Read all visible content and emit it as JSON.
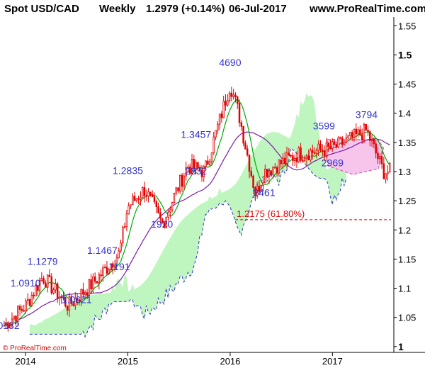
{
  "header": {
    "symbol": "Spot USD/CAD",
    "timeframe": "Weekly",
    "last": "1.2979 (+0.14%)",
    "date": "06-Jul-2017",
    "site": "www.ProRealTime.com"
  },
  "copyright": "© ProRealTime.com",
  "colors": {
    "candle": "#e00000",
    "ma_fast": "#00aa00",
    "ma_slow": "#7a1fa2",
    "cloud_green": "#bff5bf",
    "cloud_pink": "#f7c4ec",
    "annotation": "#3333cc",
    "fib": "#e00000",
    "axis": "#000000"
  },
  "chart_data": {
    "type": "candlestick",
    "title": "Spot USD/CAD Weekly",
    "y_ticks": [
      "1",
      "1.05",
      "1.1",
      "1.15",
      "1.2",
      "1.25",
      "1.3",
      "1.35",
      "1.4",
      "1.45",
      "1.5",
      "1.55"
    ],
    "x_ticks": [
      "2014",
      "2015",
      "2016",
      "2017"
    ],
    "ylim": [
      0.99,
      1.565
    ],
    "price_series_approx": {
      "x": [
        "2013-10",
        "2014-01",
        "2014-03",
        "2014-06",
        "2014-09",
        "2014-12",
        "2015-01",
        "2015-03",
        "2015-05",
        "2015-08",
        "2015-10",
        "2016-01",
        "2016-02",
        "2016-04",
        "2016-05",
        "2016-09",
        "2017-01",
        "2017-05",
        "2017-07"
      ],
      "y": [
        1.03,
        1.07,
        1.12,
        1.07,
        1.11,
        1.16,
        1.24,
        1.27,
        1.21,
        1.31,
        1.3,
        1.45,
        1.4,
        1.26,
        1.3,
        1.33,
        1.34,
        1.37,
        1.3
      ]
    },
    "annotations": [
      {
        "label": "1.1279",
        "x": "2014-03",
        "y": 1.1279
      },
      {
        "label": "1.0910",
        "x": "2014-01",
        "y": 1.091
      },
      {
        "label": "1.0621",
        "x": "2014-07",
        "y": 1.0621
      },
      {
        "label": "1.1467",
        "x": "2014-10",
        "y": 1.1467
      },
      {
        "label": "1191",
        "x": "2014-12",
        "y": 1.119
      },
      {
        "label": "1.2835",
        "x": "2015-01",
        "y": 1.2835
      },
      {
        "label": "1920",
        "x": "2015-05",
        "y": 1.192
      },
      {
        "label": "2832",
        "x": "2015-09",
        "y": 1.283
      },
      {
        "label": "1.3457",
        "x": "2015-09",
        "y": 1.3457
      },
      {
        "label": "4690",
        "x": "2016-01",
        "y": 1.469
      },
      {
        "label": "2461",
        "x": "2016-05",
        "y": 1.246
      },
      {
        "label": "3599",
        "x": "2016-12",
        "y": 1.3599
      },
      {
        "label": "2969",
        "x": "2017-01",
        "y": 1.2969
      },
      {
        "label": "3794",
        "x": "2017-05",
        "y": 1.3794
      },
      {
        "label": "0182",
        "x": "2013-11",
        "y": 1.0182
      }
    ],
    "fib_level": {
      "label": "1.2175 (61.80%)",
      "value": 1.2175
    }
  }
}
